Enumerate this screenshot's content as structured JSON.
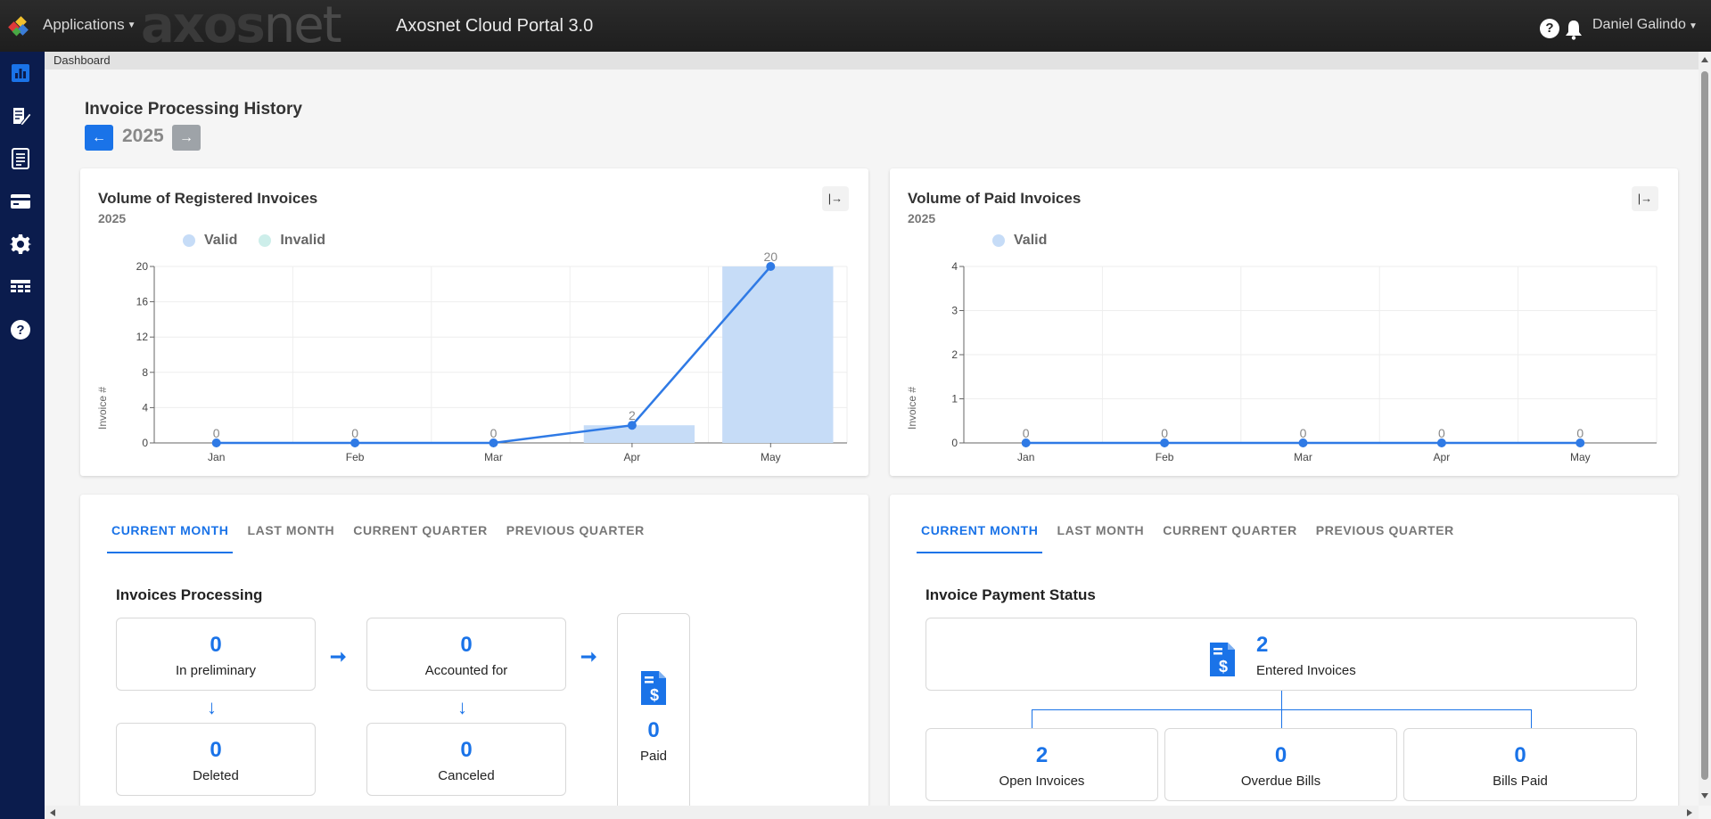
{
  "topbar": {
    "applications_label": "Applications",
    "brand_left": "axos",
    "brand_right": "net",
    "portal_title": "Axosnet Cloud Portal 3.0",
    "help": "?",
    "user_name": "Daniel Galindo"
  },
  "sidebar": {
    "items": [
      {
        "icon": "bar-chart-icon"
      },
      {
        "icon": "edit-document-icon"
      },
      {
        "icon": "list-document-icon"
      },
      {
        "icon": "credit-card-icon"
      },
      {
        "icon": "gear-icon"
      },
      {
        "icon": "table-icon"
      },
      {
        "icon": "help-icon"
      }
    ]
  },
  "breadcrumb": "Dashboard",
  "history": {
    "title": "Invoice Processing History",
    "prev": "←",
    "year": "2025",
    "next": "→"
  },
  "registered_card": {
    "title": "Volume of Registered Invoices",
    "subtitle": "2025",
    "expand": "|→",
    "legend_valid": "Valid",
    "legend_invalid": "Invalid"
  },
  "paid_card": {
    "title": "Volume of Paid Invoices",
    "subtitle": "2025",
    "expand": "|→",
    "legend_valid": "Valid"
  },
  "chart_data": [
    {
      "type": "bar",
      "title": "Volume of Registered Invoices",
      "subtitle": "2025",
      "categories": [
        "Jan",
        "Feb",
        "Mar",
        "Apr",
        "May"
      ],
      "series": [
        {
          "name": "Valid",
          "values": [
            0,
            0,
            0,
            2,
            20
          ],
          "color": "#c6dcf7"
        },
        {
          "name": "Invalid",
          "values": [
            0,
            0,
            0,
            0,
            0
          ],
          "color": "#cdeeea"
        }
      ],
      "line_values": [
        0,
        0,
        0,
        2,
        20
      ],
      "data_labels": [
        "0",
        "0",
        "0",
        "2",
        "20"
      ],
      "ylabel": "Invoice #",
      "ylim": [
        0,
        20
      ],
      "yticks": [
        "0",
        "4",
        "8",
        "12",
        "16",
        "20"
      ],
      "grid": true,
      "legend": "top-left"
    },
    {
      "type": "bar",
      "title": "Volume of Paid Invoices",
      "subtitle": "2025",
      "categories": [
        "Jan",
        "Feb",
        "Mar",
        "Apr",
        "May"
      ],
      "series": [
        {
          "name": "Valid",
          "values": [
            0,
            0,
            0,
            0,
            0
          ],
          "color": "#c6dcf7"
        }
      ],
      "line_values": [
        0,
        0,
        0,
        0,
        0
      ],
      "data_labels": [
        "0",
        "0",
        "0",
        "0",
        "0"
      ],
      "ylabel": "Invoice #",
      "ylim": [
        0,
        4
      ],
      "yticks": [
        "0",
        "1",
        "2",
        "3",
        "4"
      ],
      "grid": true,
      "legend": "top-left"
    }
  ],
  "tabs": [
    "CURRENT MONTH",
    "LAST MONTH",
    "CURRENT QUARTER",
    "PREVIOUS QUARTER"
  ],
  "processing": {
    "title": "Invoices Processing",
    "preliminary": {
      "value": "0",
      "label": "In preliminary"
    },
    "accounted": {
      "value": "0",
      "label": "Accounted for"
    },
    "deleted": {
      "value": "0",
      "label": "Deleted"
    },
    "canceled": {
      "value": "0",
      "label": "Canceled"
    },
    "paid": {
      "value": "0",
      "label": "Paid"
    }
  },
  "payment": {
    "title": "Invoice Payment Status",
    "entered": {
      "value": "2",
      "label": "Entered Invoices"
    },
    "open": {
      "value": "2",
      "label": "Open Invoices"
    },
    "overdue": {
      "value": "0",
      "label": "Overdue Bills"
    },
    "bills_paid": {
      "value": "0",
      "label": "Bills Paid"
    }
  },
  "colors": {
    "accent": "#1a73e8",
    "sidebar": "#0b1c4d",
    "bar_valid": "#c6dcf7",
    "bar_invalid": "#cdeeea"
  }
}
